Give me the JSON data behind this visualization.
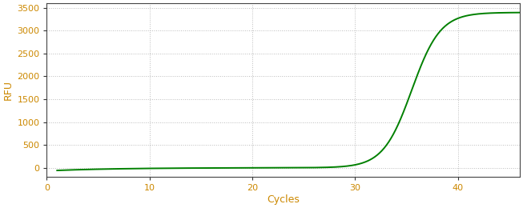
{
  "title": "",
  "xlabel": "Cycles",
  "ylabel": "RFU",
  "xlim": [
    0,
    46
  ],
  "ylim": [
    -200,
    3600
  ],
  "yticks": [
    0,
    500,
    1000,
    1500,
    2000,
    2500,
    3000,
    3500
  ],
  "xticks": [
    0,
    10,
    20,
    30,
    40
  ],
  "line_color": "#008000",
  "line_width": 1.4,
  "background_color": "#ffffff",
  "grid_color": "#bbbbbb",
  "sigmoid_L": 3400,
  "sigmoid_k": 0.72,
  "sigmoid_x0": 35.5,
  "x_start": 1,
  "x_end": 46,
  "baseline_noise": -60,
  "label_color": "#cc8800",
  "tick_label_size": 8,
  "axis_label_size": 9,
  "fig_width": 6.53,
  "fig_height": 2.6,
  "dpi": 100
}
